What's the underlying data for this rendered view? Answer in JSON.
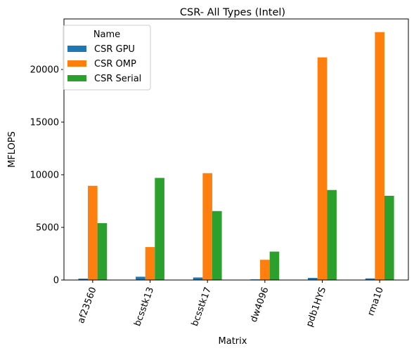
{
  "chart_data": {
    "type": "bar",
    "title": "CSR- All Types (Intel)",
    "xlabel": "Matrix",
    "ylabel": "MFLOPS",
    "categories": [
      "af23560",
      "bcsstk13",
      "bcsstk17",
      "dw4096",
      "pdb1HYS",
      "rma10"
    ],
    "ylim": [
      0,
      24800
    ],
    "yticks": [
      0,
      5000,
      10000,
      15000,
      20000
    ],
    "grid": false,
    "legend": {
      "title": "Name",
      "position": "top-left"
    },
    "series": [
      {
        "name": "CSR GPU",
        "color": "#1f77b4",
        "values": [
          130,
          310,
          240,
          60,
          200,
          150
        ]
      },
      {
        "name": "CSR OMP",
        "color": "#ff7f0e",
        "values": [
          8950,
          3130,
          10150,
          1920,
          21150,
          23550
        ]
      },
      {
        "name": "CSR Serial",
        "color": "#2ca02c",
        "values": [
          5400,
          9700,
          6550,
          2700,
          8550,
          8000
        ]
      }
    ]
  }
}
